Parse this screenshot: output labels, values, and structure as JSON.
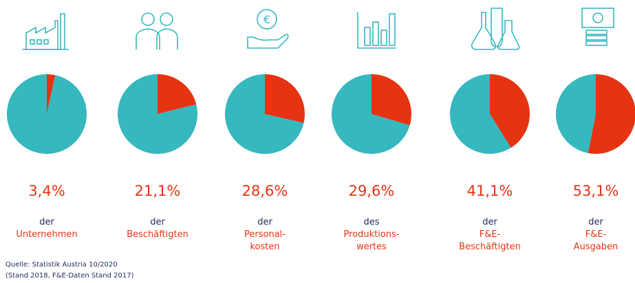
{
  "source": [
    "Quelle: Statistik Austria 10/2020",
    "(Stand 2018, F&E-Daten Stand 2017)"
  ],
  "chart_data": [
    {
      "type": "pie",
      "subtitle": "der",
      "title": [
        "Unternehmen"
      ],
      "values": [
        3.4,
        96.6
      ],
      "value_labels": [
        "3,4%",
        null
      ],
      "colors": [
        "#e63312",
        "#35b8be"
      ]
    },
    {
      "type": "pie",
      "subtitle": "der",
      "title": [
        "Beschäftigten"
      ],
      "values": [
        21.1,
        78.9
      ],
      "value_labels": [
        "21,1%",
        null
      ],
      "colors": [
        "#e63312",
        "#35b8be"
      ]
    },
    {
      "type": "pie",
      "subtitle": "der",
      "title": [
        "Personal-",
        "kosten"
      ],
      "values": [
        28.6,
        71.4
      ],
      "value_labels": [
        "28,6%",
        null
      ],
      "colors": [
        "#e63312",
        "#35b8be"
      ]
    },
    {
      "type": "pie",
      "subtitle": "des",
      "title": [
        "Produktions-",
        "wertes"
      ],
      "values": [
        29.6,
        70.4
      ],
      "value_labels": [
        "29,6%",
        null
      ],
      "colors": [
        "#e63312",
        "#35b8be"
      ]
    },
    {
      "type": "pie",
      "subtitle": "der",
      "title": [
        "F&E-",
        "Beschäftigten"
      ],
      "values": [
        41.1,
        58.9
      ],
      "value_labels": [
        "41,1%",
        null
      ],
      "colors": [
        "#e63312",
        "#35b8be"
      ]
    },
    {
      "type": "pie",
      "subtitle": "der",
      "title": [
        "F&E-",
        "Ausgaben"
      ],
      "values": [
        53.1,
        46.9
      ],
      "value_labels": [
        "53,1%",
        null
      ],
      "colors": [
        "#e63312",
        "#35b8be"
      ]
    }
  ]
}
